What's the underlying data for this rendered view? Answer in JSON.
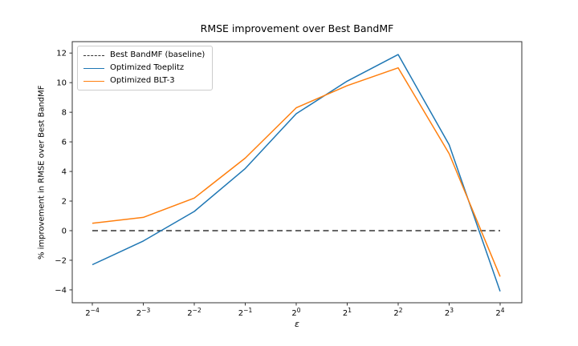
{
  "chart_data": {
    "type": "line",
    "title": "RMSE improvement over Best BandMF",
    "xlabel": "ε",
    "ylabel": "% improvement in RMSE over Best BandMF",
    "x": [
      0.0625,
      0.125,
      0.25,
      0.5,
      1,
      2,
      4,
      8,
      16
    ],
    "x_ticks": [
      {
        "base": "2",
        "exp": "−4"
      },
      {
        "base": "2",
        "exp": "−3"
      },
      {
        "base": "2",
        "exp": "−2"
      },
      {
        "base": "2",
        "exp": "−1"
      },
      {
        "base": "2",
        "exp": "0"
      },
      {
        "base": "2",
        "exp": "1"
      },
      {
        "base": "2",
        "exp": "2"
      },
      {
        "base": "2",
        "exp": "3"
      },
      {
        "base": "2",
        "exp": "4"
      }
    ],
    "y_ticks": {
      "values": [
        -4,
        -2,
        0,
        2,
        4,
        6,
        8,
        10,
        12
      ],
      "labels": [
        "−4",
        "−2",
        "0",
        "2",
        "4",
        "6",
        "8",
        "10",
        "12"
      ]
    },
    "ylim": [
      -4.87,
      12.77
    ],
    "x_scale": "log2",
    "grid": false,
    "legend_position": "upper left",
    "series": [
      {
        "name": "Best BandMF (baseline)",
        "color": "#333333",
        "style": "dashed",
        "values": [
          0,
          0,
          0,
          0,
          0,
          0,
          0,
          0,
          0
        ]
      },
      {
        "name": "Optimized Toeplitz",
        "color": "#1f77b4",
        "style": "solid",
        "values": [
          -2.3,
          -0.7,
          1.3,
          4.2,
          7.9,
          10.1,
          11.9,
          5.8,
          -4.1
        ]
      },
      {
        "name": "Optimized BLT-3",
        "color": "#ff7f0e",
        "style": "solid",
        "values": [
          0.5,
          0.9,
          2.2,
          4.9,
          8.3,
          9.8,
          11.0,
          5.2,
          -3.1
        ]
      }
    ]
  }
}
